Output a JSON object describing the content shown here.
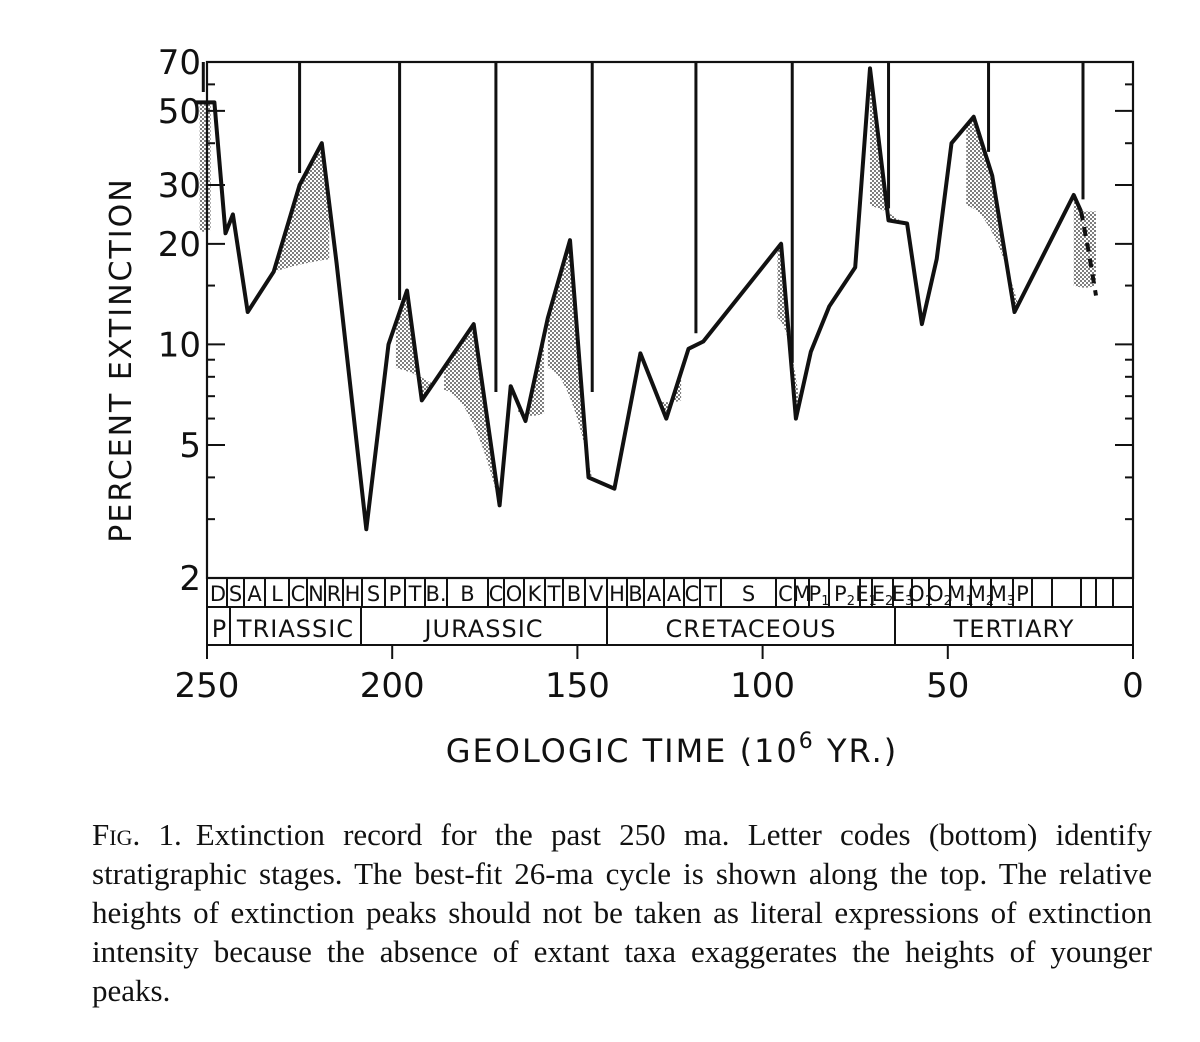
{
  "chart_data": {
    "type": "line",
    "xlabel_prefix": "GEOLOGIC TIME (10",
    "xlabel_exp": "6",
    "xlabel_suffix": " YR.)",
    "ylabel": "PERCENT EXTINCTION",
    "x_scale": "linear-reversed",
    "y_scale": "log",
    "xlim": [
      250,
      0
    ],
    "ylim": [
      2,
      70
    ],
    "x_ticks": [
      "250",
      "200",
      "150",
      "100",
      "50",
      "0"
    ],
    "y_ticks": [
      "70",
      "50",
      "30",
      "20",
      "10",
      "5",
      "2"
    ],
    "series": [
      {
        "x": [
          253,
          248,
          245,
          243,
          239,
          232,
          225,
          219,
          215,
          207,
          201,
          196,
          192,
          178,
          171,
          168,
          164,
          158,
          152,
          147,
          140,
          133,
          126,
          120,
          116,
          95,
          91,
          87,
          82,
          75,
          71,
          66,
          61,
          57,
          53,
          49,
          43,
          38,
          32,
          16,
          14
        ],
        "y": [
          53,
          53,
          21.5,
          24.5,
          12.5,
          16.5,
          30,
          40,
          17.5,
          2.8,
          10,
          14.5,
          6.8,
          11.5,
          3.3,
          7.5,
          5.9,
          12,
          20.5,
          4,
          3.7,
          9.4,
          6,
          9.7,
          10.2,
          20,
          6,
          9.5,
          13,
          17,
          67,
          23.5,
          23,
          11.5,
          18,
          40,
          48,
          32,
          12.5,
          28,
          25
        ]
      }
    ],
    "dashed_tail": {
      "x": [
        14,
        12,
        10
      ],
      "y": [
        25,
        19,
        14
      ]
    },
    "shaded_peaks": [
      {
        "x": [
          252,
          249
        ],
        "base": 22
      },
      {
        "x": [
          232,
          217
        ],
        "base": 18
      },
      {
        "x": [
          199,
          189
        ],
        "base": 8.5
      },
      {
        "x": [
          186,
          171
        ],
        "base": 7.3
      },
      {
        "x": [
          166,
          159
        ],
        "base": 6.2
      },
      {
        "x": [
          158,
          146
        ],
        "base": 8.5
      },
      {
        "x": [
          128,
          122
        ],
        "base": 6.8
      },
      {
        "x": [
          96,
          90
        ],
        "base": 12
      },
      {
        "x": [
          71,
          62
        ],
        "base": 26
      },
      {
        "x": [
          45,
          31
        ],
        "base": 26
      },
      {
        "x": [
          16,
          10
        ],
        "base": 15
      }
    ],
    "cycle_peaks_x": [
      251,
      225,
      198,
      172,
      146,
      118,
      92,
      66,
      39,
      13.5
    ],
    "stage_labels": [
      "D",
      "S",
      "A",
      "L",
      "C",
      "N",
      "R",
      "H",
      "S",
      "P",
      "T",
      "B.",
      "B",
      "C",
      "O",
      "K",
      "T",
      "B",
      "V",
      "H",
      "B",
      "A",
      "A",
      "C",
      "T",
      "S",
      "C",
      "M",
      "P1",
      "P2",
      "E1",
      "E2",
      "E3",
      "O1",
      "O2",
      "M1",
      "M2",
      "M3",
      "P"
    ],
    "period_labels": [
      "P",
      "TRIASSIC",
      "JURASSIC",
      "CRETACEOUS",
      "TERTIARY"
    ],
    "grid": false
  },
  "caption": {
    "fig": "Fig. 1.",
    "text": "Extinction record for the past 250 ma. Letter codes (bottom) identify stratigraphic stages. The best-fit 26-ma cycle is shown along the top. The relative heights of extinction peaks should not be taken as literal expressions of extinction intensity because the absence of extant taxa exaggerates the heights of younger peaks."
  }
}
